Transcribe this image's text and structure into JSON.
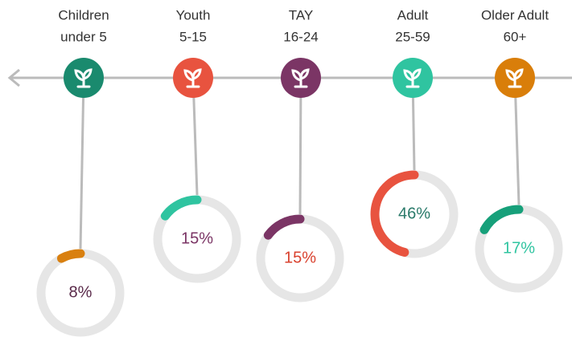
{
  "chart_data": {
    "type": "donut",
    "groups": [
      {
        "name": "Children",
        "range": "under 5",
        "value": 8,
        "value_label": "8%",
        "color": "#d98010",
        "icon_color": "#1a8a6e",
        "label_color": "#5a2a4a"
      },
      {
        "name": "Youth",
        "range": "5-15",
        "value": 15,
        "value_label": "15%",
        "color": "#2fc4a0",
        "icon_color": "#e8533f",
        "label_color": "#7b3565"
      },
      {
        "name": "TAY",
        "range": "16-24",
        "value": 15,
        "value_label": "15%",
        "color": "#7b3565",
        "icon_color": "#7b3565",
        "label_color": "#d9412e"
      },
      {
        "name": "Adult",
        "range": "25-59",
        "value": 46,
        "value_label": "46%",
        "color": "#e8533f",
        "icon_color": "#2fc4a0",
        "label_color": "#2a7a6a"
      },
      {
        "name": "Older Adult",
        "range": "60+",
        "value": 17,
        "value_label": "17%",
        "color": "#17a07a",
        "icon_color": "#d97e0a",
        "label_color": "#2fc4a0"
      }
    ]
  }
}
